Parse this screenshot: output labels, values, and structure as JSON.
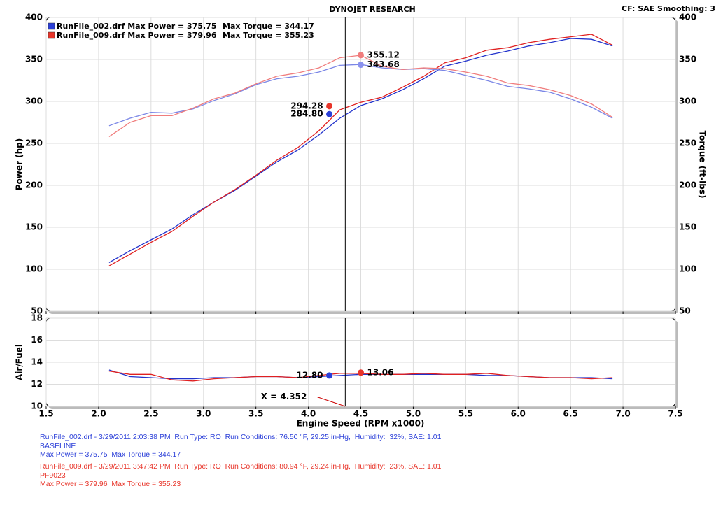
{
  "chart_data": [
    {
      "type": "line",
      "title": "DYNOJET RESEARCH",
      "subtitle": "CF: SAE  Smoothing: 3",
      "ylabel": "Power (hp)",
      "y2label": "Torque (ft-lbs)",
      "xlim": [
        1.5,
        7.5
      ],
      "xticks": [
        1.5,
        2,
        2.5,
        3,
        3.5,
        4,
        4.5,
        5,
        5.5,
        6,
        6.5,
        7,
        7.5
      ],
      "ylim": [
        50,
        400
      ],
      "yticks": [
        50,
        100,
        150,
        200,
        250,
        300,
        350,
        400
      ],
      "y2lim": [
        50,
        400
      ],
      "y2ticks": [
        50,
        100,
        150,
        200,
        250,
        300,
        350,
        400
      ],
      "grid": true,
      "legend": [
        {
          "text": "RunFile_002.drf Max Power = 375.75",
          "extra": "Max Torque = 344.17",
          "color": "#2b3fd8"
        },
        {
          "text": "RunFile_009.drf Max Power = 379.96",
          "extra": "Max Torque = 355.23",
          "color": "#e8352a"
        }
      ],
      "x": [
        2.1,
        2.3,
        2.5,
        2.7,
        2.9,
        3.1,
        3.3,
        3.5,
        3.7,
        3.9,
        4.1,
        4.3,
        4.5,
        4.7,
        4.9,
        5.1,
        5.3,
        5.5,
        5.7,
        5.9,
        6.1,
        6.3,
        6.5,
        6.7,
        6.9
      ],
      "series": [
        {
          "color": "#2233cc",
          "values": [
            108,
            122,
            135,
            148,
            165,
            180,
            194,
            211,
            228,
            242,
            260,
            280,
            295,
            303,
            314,
            327,
            342,
            348,
            355,
            360,
            366,
            370,
            375,
            374,
            366
          ]
        },
        {
          "color": "#e02020",
          "values": [
            104,
            118,
            132,
            145,
            163,
            180,
            195,
            212,
            230,
            245,
            265,
            290,
            299,
            305,
            317,
            330,
            346,
            352,
            361,
            364,
            370,
            374,
            377,
            380,
            367
          ]
        },
        {
          "color": "#7a86e6",
          "axis": "y2",
          "values": [
            271,
            280,
            287,
            286,
            291,
            301,
            309,
            320,
            327,
            330,
            335,
            343,
            344,
            340,
            338,
            339,
            337,
            331,
            325,
            318,
            315,
            311,
            303,
            293,
            280
          ]
        },
        {
          "color": "#f07d7d",
          "axis": "y2",
          "values": [
            258,
            275,
            283,
            283,
            292,
            303,
            310,
            321,
            330,
            334,
            340,
            352,
            355,
            342,
            338,
            340,
            339,
            335,
            330,
            322,
            319,
            314,
            307,
            297,
            281
          ]
        }
      ],
      "markers": {
        "x": [
          4.5,
          4.5,
          4.2,
          4.2
        ],
        "values": [
          355.12,
          343.68,
          294.28,
          284.8
        ],
        "value_labels": [
          "355.12",
          "343.68",
          "294.28",
          "284.80"
        ],
        "colors": [
          "#f07d7d",
          "#8a92ee",
          "#e8352a",
          "#2b3fd8"
        ]
      },
      "cursor": {
        "x": 4.352
      }
    },
    {
      "type": "line",
      "ylabel": "Air/Fuel",
      "xlabel": "Engine Speed (RPM x1000)",
      "xlim": [
        1.5,
        7.5
      ],
      "xticks": [
        1.5,
        {
          "value": 2,
          "label": "2.0"
        },
        2.5,
        {
          "value": 3,
          "label": "3.0"
        },
        3.5,
        {
          "value": 4,
          "label": "4.0"
        },
        4.5,
        {
          "value": 5,
          "label": "5.0"
        },
        5.5,
        {
          "value": 6,
          "label": "6.0"
        },
        6.5,
        {
          "value": 7,
          "label": "7.0"
        },
        7.5
      ],
      "ylim": [
        10,
        18
      ],
      "yticks": [
        10,
        12,
        14,
        16,
        18
      ],
      "grid": true,
      "x": [
        2.1,
        2.3,
        2.5,
        2.7,
        2.9,
        3.1,
        3.3,
        3.5,
        3.7,
        3.9,
        4.1,
        4.3,
        4.5,
        4.7,
        4.9,
        5.1,
        5.3,
        5.5,
        5.7,
        5.9,
        6.1,
        6.3,
        6.5,
        6.7,
        6.9
      ],
      "series": [
        {
          "color": "#2233cc",
          "values": [
            13.3,
            12.7,
            12.6,
            12.5,
            12.5,
            12.6,
            12.6,
            12.7,
            12.7,
            12.6,
            12.7,
            12.8,
            12.9,
            12.9,
            12.9,
            12.9,
            12.9,
            12.9,
            12.8,
            12.8,
            12.7,
            12.6,
            12.6,
            12.6,
            12.5
          ]
        },
        {
          "color": "#e02020",
          "values": [
            13.2,
            12.9,
            12.9,
            12.4,
            12.3,
            12.5,
            12.6,
            12.7,
            12.7,
            12.6,
            12.8,
            13.0,
            13.0,
            12.9,
            12.9,
            13.0,
            12.9,
            12.9,
            13.0,
            12.8,
            12.7,
            12.6,
            12.6,
            12.5,
            12.6
          ]
        }
      ],
      "markers": {
        "x": [
          4.2,
          4.5
        ],
        "values": [
          12.8,
          13.06
        ],
        "value_labels": [
          "12.80",
          "13.06"
        ],
        "colors": [
          "#2b3fd8",
          "#e8352a"
        ]
      },
      "cursor": {
        "x": 4.352,
        "label": "X = 4.352"
      }
    }
  ],
  "footer": [
    {
      "color": "#2b3fd8",
      "lines": [
        "RunFile_002.drf - 3/29/2011 2:03:38 PM  Run Type: RO  Run Conditions: 76.50 °F, 29.25 in-Hg,  Humidity:  32%, SAE: 1.01",
        "BASELINE",
        "Max Power = 375.75  Max Torque = 344.17"
      ]
    },
    {
      "color": "#e8352a",
      "lines": [
        "RunFile_009.drf - 3/29/2011 3:47:42 PM  Run Type: RO  Run Conditions: 80.94 °F, 29.24 in-Hg,  Humidity:  23%, SAE: 1.01",
        "PF9023",
        "Max Power = 379.96  Max Torque = 355.23"
      ]
    }
  ]
}
